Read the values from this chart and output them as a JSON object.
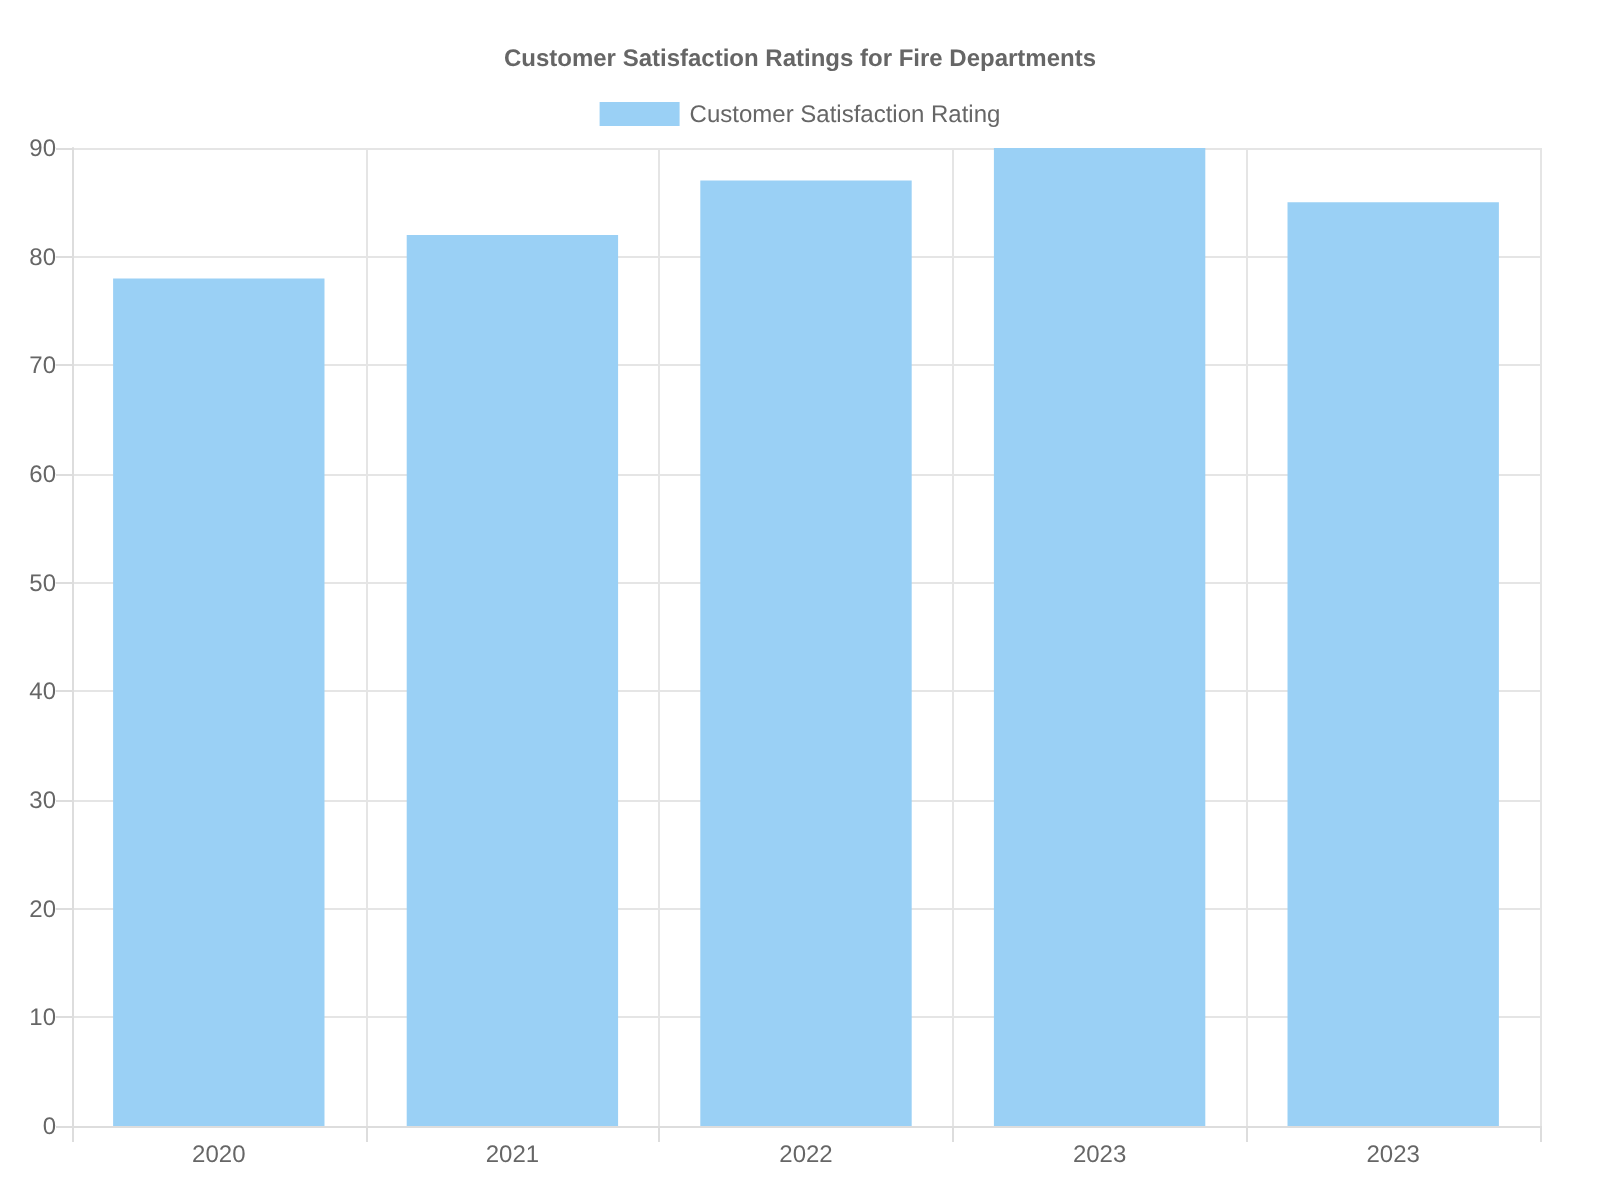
{
  "chart_data": {
    "type": "bar",
    "title": "Customer Satisfaction Ratings for Fire Departments",
    "categories": [
      "2020",
      "2021",
      "2022",
      "2023",
      "2023"
    ],
    "series": [
      {
        "name": "Customer Satisfaction Rating",
        "color": "#9ad0f5",
        "values": [
          78,
          82,
          87,
          90,
          85
        ]
      }
    ],
    "ylim": [
      0,
      90
    ],
    "yticks": [
      0,
      10,
      20,
      30,
      40,
      50,
      60,
      70,
      80,
      90
    ],
    "grid": true,
    "legend": "top"
  }
}
